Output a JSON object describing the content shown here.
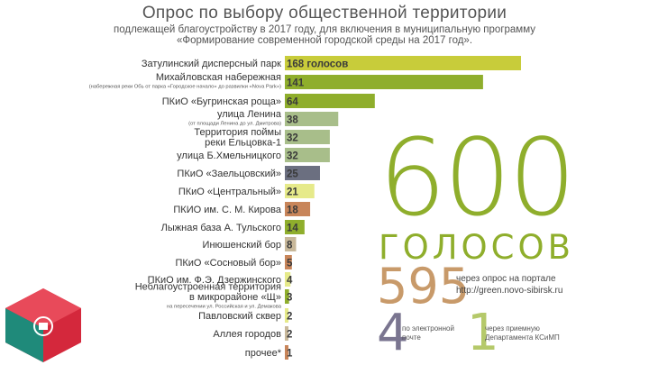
{
  "header": {
    "title": "Опрос по выбору общественной территории",
    "subtitle1": "подлежащей благоустройству в 2017 году, для включения в муниципальную программу",
    "subtitle2": "«Формирование современной городской среды на 2017 год»."
  },
  "summary": {
    "total_number": "600",
    "total_word": "ГОЛОСОВ",
    "portal_number": "595",
    "portal_line1": "через опрос на портале",
    "portal_line2": "http://green.novo-sibirsk.ru",
    "email_number": "4",
    "email_line1": "по электронной",
    "email_line2": "почте",
    "reception_number": "1",
    "reception_line1": "через приемную",
    "reception_line2": "Департамента КСиМП"
  },
  "chart_data": {
    "type": "bar",
    "orientation": "horizontal",
    "categories": [
      "Затулинский дисперсный парк",
      "Михайловская набережная",
      "ПКиО «Бугринская роща»",
      "улица Ленина",
      "Территория поймы реки Ельцовка-1",
      "улица Б.Хмельницкого",
      "ПКиО «Заельцовский»",
      "ПКиО «Центральный»",
      "ПКИО им. С. М. Кирова",
      "Лыжная база А. Тульского",
      "Инюшенский бор",
      "ПКиО «Сосновый бор»",
      "ПКиО им. Ф.Э. Дзержинского",
      "Неблагоустроенная территория в микрорайоне «Щ»",
      "Павловский сквер",
      "Аллея городов",
      "прочее*"
    ],
    "category_lines": [
      [
        "Затулинский дисперсный парк"
      ],
      [
        "Михайловская набережная"
      ],
      [
        "ПКиО «Бугринская роща»"
      ],
      [
        "улица Ленина"
      ],
      [
        "Территория поймы",
        "реки Ельцовка-1"
      ],
      [
        "улица Б.Хмельницкого"
      ],
      [
        "ПКиО «Заельцовский»"
      ],
      [
        "ПКиО «Центральный»"
      ],
      [
        "ПКИО им. С. М. Кирова"
      ],
      [
        "Лыжная база А. Тульского"
      ],
      [
        "Инюшенский бор"
      ],
      [
        "ПКиО «Сосновый бор»"
      ],
      [
        "ПКиО им. Ф.Э. Дзержинского"
      ],
      [
        "Неблагоустроенная территория",
        "в микрорайоне «Щ»"
      ],
      [
        "Павловский сквер"
      ],
      [
        "Аллея городов"
      ],
      [
        "прочее*"
      ]
    ],
    "notes": [
      "",
      "(набережная реки Обь от парка «Городское начало» до развилки «Nova Park»)",
      "",
      "(от площади Ленина до ул. Дмитрова)",
      "",
      "",
      "",
      "",
      "",
      "",
      "",
      "",
      "",
      "на пересечении ул. Российская и ул. Демакова",
      "",
      "",
      ""
    ],
    "values": [
      168,
      141,
      64,
      38,
      32,
      32,
      25,
      21,
      18,
      14,
      8,
      5,
      4,
      3,
      2,
      2,
      1
    ],
    "value_labels": [
      "168 голосов",
      "141",
      "64",
      "38",
      "32",
      "32",
      "25",
      "21",
      "18",
      "14",
      "8",
      "5",
      "4",
      "3",
      "2",
      "2",
      "1"
    ],
    "colors": [
      "#c8cc3a",
      "#8fae2c",
      "#8fae2c",
      "#a8be8a",
      "#a8be8a",
      "#a8be8a",
      "#6b6f80",
      "#e6ea8a",
      "#c8855a",
      "#8fae2c",
      "#c8b89a",
      "#c8855a",
      "#e6ea8a",
      "#8fae2c",
      "#e6ea8a",
      "#c8b89a",
      "#c8855a"
    ],
    "xlim": [
      0,
      168
    ]
  },
  "colors": {
    "accent_green": "#8fae2c",
    "accent_brown": "#c89a6a",
    "accent_purple": "#7a7590",
    "logo_red": "#d4283c",
    "logo_teal": "#1f8a7a"
  }
}
